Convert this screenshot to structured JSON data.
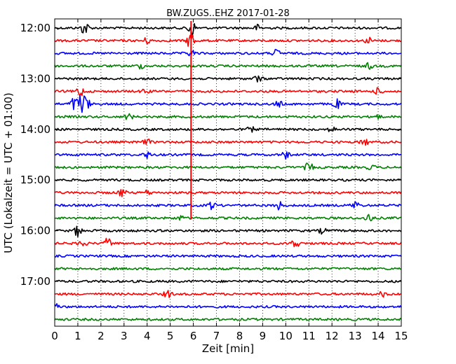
{
  "chart_data": {
    "type": "line",
    "title": "BW.ZUGS..EHZ 2017-01-28",
    "xlabel": "Zeit  [min]",
    "ylabel": "UTC (Lokalzeit = UTC + 01:00)",
    "xlim": [
      0,
      15
    ],
    "x_ticks": [
      "0",
      "1",
      "2",
      "3",
      "4",
      "5",
      "6",
      "7",
      "8",
      "9",
      "10",
      "11",
      "12",
      "13",
      "14",
      "15"
    ],
    "y_ticks": [
      {
        "row": 0,
        "label": "12:00"
      },
      {
        "row": 4,
        "label": "13:00"
      },
      {
        "row": 8,
        "label": "14:00"
      },
      {
        "row": 12,
        "label": "15:00"
      },
      {
        "row": 16,
        "label": "16:00"
      },
      {
        "row": 20,
        "label": "17:00"
      }
    ],
    "grid": "vertical dotted lines at each minute",
    "trace_interval_min": 15,
    "trace_colors": [
      "#000000",
      "#ff0000",
      "#0000ff",
      "#008000"
    ],
    "traces": [
      {
        "start": "12:00",
        "color": "#000000",
        "events": [
          [
            1.3,
            1.2
          ],
          [
            5.9,
            1.8
          ],
          [
            8.8,
            0.5
          ]
        ]
      },
      {
        "start": "12:15",
        "color": "#ff0000",
        "events": [
          [
            5.9,
            1.6
          ],
          [
            4.0,
            0.5
          ],
          [
            13.6,
            0.5
          ]
        ]
      },
      {
        "start": "12:30",
        "color": "#0000ff",
        "events": [
          [
            5.9,
            0.5
          ],
          [
            9.6,
            0.6
          ]
        ]
      },
      {
        "start": "12:45",
        "color": "#008000",
        "events": [
          [
            3.7,
            0.4
          ],
          [
            13.6,
            0.5
          ]
        ]
      },
      {
        "start": "13:00",
        "color": "#000000",
        "events": [
          [
            8.8,
            0.6
          ]
        ]
      },
      {
        "start": "13:15",
        "color": "#ff0000",
        "events": [
          [
            1.1,
            0.9
          ],
          [
            3.9,
            0.4
          ],
          [
            14.0,
            0.5
          ]
        ]
      },
      {
        "start": "13:30",
        "color": "#0000ff",
        "events": [
          [
            0.8,
            1.0
          ],
          [
            1.15,
            2.0
          ],
          [
            1.4,
            0.9
          ],
          [
            9.7,
            0.5
          ],
          [
            12.2,
            0.8
          ]
        ]
      },
      {
        "start": "13:45",
        "color": "#008000",
        "events": [
          [
            3.2,
            0.5
          ],
          [
            13.9,
            0.5
          ]
        ]
      },
      {
        "start": "14:00",
        "color": "#000000",
        "events": [
          [
            8.5,
            0.4
          ],
          [
            12.0,
            0.4
          ]
        ]
      },
      {
        "start": "14:15",
        "color": "#ff0000",
        "events": [
          [
            4.0,
            0.4
          ],
          [
            13.4,
            0.6
          ]
        ]
      },
      {
        "start": "14:30",
        "color": "#0000ff",
        "events": [
          [
            4.0,
            0.5
          ],
          [
            10.0,
            0.6
          ]
        ]
      },
      {
        "start": "14:45",
        "color": "#008000",
        "events": [
          [
            11.0,
            0.8
          ],
          [
            13.7,
            0.4
          ]
        ]
      },
      {
        "start": "15:00",
        "color": "#000000",
        "events": []
      },
      {
        "start": "15:15",
        "color": "#ff0000",
        "events": [
          [
            2.9,
            0.7
          ],
          [
            4.0,
            0.4
          ]
        ]
      },
      {
        "start": "15:30",
        "color": "#0000ff",
        "events": [
          [
            6.8,
            0.6
          ],
          [
            9.7,
            0.7
          ],
          [
            13.0,
            0.7
          ]
        ]
      },
      {
        "start": "15:45",
        "color": "#008000",
        "events": [
          [
            5.4,
            0.4
          ],
          [
            13.6,
            0.7
          ]
        ]
      },
      {
        "start": "16:00",
        "color": "#000000",
        "events": [
          [
            1.0,
            0.9
          ],
          [
            11.6,
            0.5
          ]
        ]
      },
      {
        "start": "16:15",
        "color": "#ff0000",
        "events": [
          [
            1.2,
            0.6
          ],
          [
            2.3,
            0.9
          ],
          [
            10.4,
            0.9
          ]
        ]
      },
      {
        "start": "16:30",
        "color": "#0000ff",
        "events": []
      },
      {
        "start": "16:45",
        "color": "#008000",
        "events": []
      },
      {
        "start": "17:00",
        "color": "#000000",
        "events": []
      },
      {
        "start": "17:15",
        "color": "#ff0000",
        "events": [
          [
            4.9,
            0.6
          ],
          [
            14.2,
            0.4
          ]
        ]
      },
      {
        "start": "17:30",
        "color": "#0000ff",
        "events": [
          [
            0.0,
            0.8
          ]
        ]
      },
      {
        "start": "17:45",
        "color": "#008000",
        "events": []
      }
    ],
    "long_spike": {
      "x": 5.9,
      "color": "#ff0000",
      "from": "12:00",
      "to": "15:45"
    }
  }
}
